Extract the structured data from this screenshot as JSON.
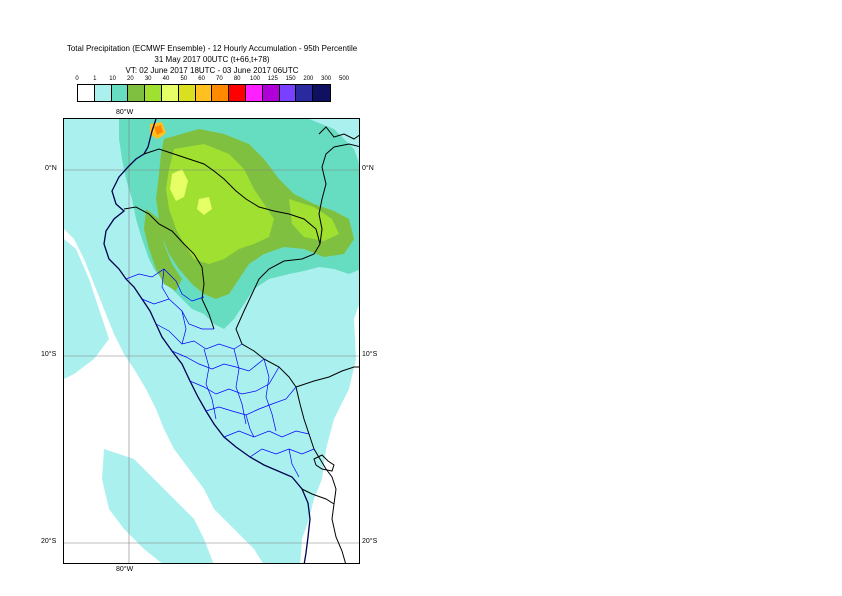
{
  "title": {
    "line1": "Total Precipitation (ECMWF Ensemble) - 12 Hourly Accumulation - 95th Percentile",
    "line2": "31 May 2017 00UTC (t+66,t+78)",
    "line3": "VT: 02 June 2017 18UTC - 03 June 2017 06UTC"
  },
  "legend": {
    "thresholds": [
      "0",
      "1",
      "10",
      "20",
      "30",
      "40",
      "50",
      "60",
      "70",
      "80",
      "100",
      "125",
      "150",
      "200",
      "300",
      "500"
    ],
    "colors": [
      "#ffffff",
      "#aaf0ee",
      "#66ddc0",
      "#80c040",
      "#a0e030",
      "#e6ff66",
      "#d8e020",
      "#ffc020",
      "#ff8a00",
      "#ff0000",
      "#ff20ff",
      "#b000d8",
      "#7a40ff",
      "#2a2aa0",
      "#101060"
    ]
  },
  "map": {
    "lat_labels": [
      "0°N",
      "10°S",
      "20°S"
    ],
    "lon_label": "80°W",
    "colors": {
      "background": "#ffffff",
      "light": "#aaf0ee",
      "medium": "#66ddc0",
      "green": "#80c040",
      "lightgreen": "#a0e030",
      "yellow": "#e6ff66",
      "orange": "#ff8a00",
      "coast": "#000000",
      "border": "#000000",
      "admin": "#0000ff",
      "grid": "#808080"
    }
  }
}
